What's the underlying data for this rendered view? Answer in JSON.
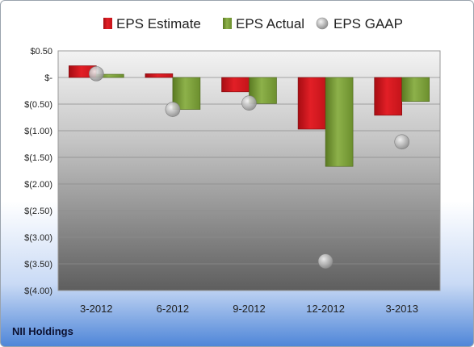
{
  "company": "NII Holdings",
  "colors": {
    "estimate": "#e21f26",
    "actual": "#7ea13c",
    "gaap": "#b8b8b8"
  },
  "chart_data": {
    "type": "bar",
    "categories": [
      "3-2012",
      "6-2012",
      "9-2012",
      "12-2012",
      "3-2013"
    ],
    "series": [
      {
        "name": "EPS Estimate",
        "values": [
          0.22,
          0.07,
          -0.27,
          -0.97,
          -0.71
        ]
      },
      {
        "name": "EPS Actual",
        "values": [
          0.06,
          -0.6,
          -0.49,
          -1.67,
          -0.45
        ]
      },
      {
        "name": "EPS GAAP",
        "type": "scatter",
        "values": [
          0.07,
          -0.6,
          -0.48,
          -3.45,
          -1.21
        ]
      }
    ],
    "y_ticks": [
      "$0.50",
      "$-",
      "$(0.50)",
      "$(1.00)",
      "$(1.50)",
      "$(2.00)",
      "$(2.50)",
      "$(3.00)",
      "$(3.50)",
      "$(4.00)"
    ],
    "ylim": [
      -4.0,
      0.5
    ],
    "legend_position": "top",
    "grid": true
  }
}
